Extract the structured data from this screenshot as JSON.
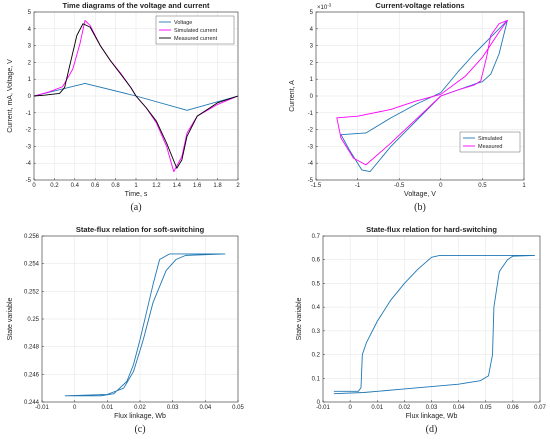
{
  "chart_data": [
    {
      "id": "a",
      "type": "line",
      "panel_label": "(a)",
      "title": "Time diagrams of the voltage and current",
      "xlabel": "Time, s",
      "ylabel": "Current, mA, Voltage, V",
      "xlim": [
        0,
        2
      ],
      "ylim": [
        -5,
        5
      ],
      "xticks": [
        0,
        0.2,
        0.4,
        0.6,
        0.8,
        1,
        1.2,
        1.4,
        1.6,
        1.8,
        2
      ],
      "yticks": [
        -5,
        -4,
        -3,
        -2,
        -1,
        0,
        1,
        2,
        3,
        4,
        5
      ],
      "grid": true,
      "legend": "top-right",
      "series": [
        {
          "name": "Voltage",
          "color": "#1f77b4",
          "points": [
            [
              0,
              0
            ],
            [
              0.5,
              0.75
            ],
            [
              1.0,
              0
            ],
            [
              1.5,
              -0.85
            ],
            [
              2.0,
              0
            ]
          ]
        },
        {
          "name": "Simulated current",
          "color": "#ff00ff",
          "points": [
            [
              0,
              0
            ],
            [
              0.15,
              0.25
            ],
            [
              0.28,
              0.55
            ],
            [
              0.38,
              1.6
            ],
            [
              0.45,
              3.1
            ],
            [
              0.5,
              4.5
            ],
            [
              0.55,
              4.2
            ],
            [
              0.65,
              3.0
            ],
            [
              0.75,
              2.1
            ],
            [
              0.85,
              1.35
            ],
            [
              0.95,
              0.5
            ],
            [
              1.0,
              0
            ],
            [
              1.1,
              -0.7
            ],
            [
              1.2,
              -1.6
            ],
            [
              1.3,
              -3.0
            ],
            [
              1.37,
              -4.5
            ],
            [
              1.45,
              -3.6
            ],
            [
              1.5,
              -2.2
            ],
            [
              1.6,
              -1.2
            ],
            [
              1.8,
              -0.5
            ],
            [
              2.0,
              0
            ]
          ]
        },
        {
          "name": "Measured current",
          "color": "#000000",
          "points": [
            [
              0,
              0
            ],
            [
              0.1,
              0.05
            ],
            [
              0.25,
              0.15
            ],
            [
              0.3,
              0.5
            ],
            [
              0.35,
              1.8
            ],
            [
              0.42,
              3.6
            ],
            [
              0.48,
              4.3
            ],
            [
              0.55,
              4.1
            ],
            [
              0.65,
              3.0
            ],
            [
              0.75,
              2.1
            ],
            [
              0.85,
              1.3
            ],
            [
              0.95,
              0.5
            ],
            [
              1.0,
              0
            ],
            [
              1.1,
              -0.7
            ],
            [
              1.2,
              -1.5
            ],
            [
              1.3,
              -2.8
            ],
            [
              1.4,
              -4.3
            ],
            [
              1.45,
              -3.8
            ],
            [
              1.5,
              -2.4
            ],
            [
              1.6,
              -1.2
            ],
            [
              1.8,
              -0.4
            ],
            [
              2.0,
              0
            ]
          ]
        }
      ]
    },
    {
      "id": "b",
      "type": "line",
      "panel_label": "(b)",
      "title": "Current-voltage relations",
      "xlabel": "Voltage, V",
      "ylabel": "Current, A",
      "y_multiplier": "×10",
      "y_multiplier_exp": "-3",
      "xlim": [
        -1.5,
        1
      ],
      "ylim": [
        -5,
        5
      ],
      "xticks": [
        -1.5,
        -1,
        -0.5,
        0,
        0.5,
        1
      ],
      "yticks": [
        -5,
        -4,
        -3,
        -2,
        -1,
        0,
        1,
        2,
        3,
        4,
        5
      ],
      "grid": true,
      "legend": "bottom-right",
      "series": [
        {
          "name": "Simulated",
          "color": "#1f77b4",
          "points": [
            [
              0,
              0
            ],
            [
              0.2,
              0.35
            ],
            [
              0.4,
              0.7
            ],
            [
              0.5,
              0.85
            ],
            [
              0.6,
              1.3
            ],
            [
              0.7,
              2.5
            ],
            [
              0.8,
              4.5
            ],
            [
              0.6,
              3.5
            ],
            [
              0.4,
              2.5
            ],
            [
              0.2,
              1.4
            ],
            [
              0,
              0.2
            ],
            [
              -0.3,
              -0.5
            ],
            [
              -0.6,
              -1.3
            ],
            [
              -0.9,
              -2.2
            ],
            [
              -1.2,
              -2.3
            ],
            [
              -1.1,
              -3.2
            ],
            [
              -0.95,
              -4.4
            ],
            [
              -0.85,
              -4.5
            ],
            [
              -0.6,
              -3.0
            ],
            [
              -0.3,
              -1.5
            ],
            [
              0,
              0
            ]
          ]
        },
        {
          "name": "Measured",
          "color": "#ff00ff",
          "points": [
            [
              0,
              0
            ],
            [
              0.2,
              0.35
            ],
            [
              0.4,
              0.65
            ],
            [
              0.48,
              0.9
            ],
            [
              0.55,
              2.3
            ],
            [
              0.6,
              3.6
            ],
            [
              0.7,
              4.3
            ],
            [
              0.8,
              4.5
            ],
            [
              0.7,
              3.8
            ],
            [
              0.5,
              2.3
            ],
            [
              0.3,
              1.2
            ],
            [
              0,
              0.1
            ],
            [
              -0.3,
              -0.3
            ],
            [
              -0.6,
              -0.8
            ],
            [
              -1.0,
              -1.2
            ],
            [
              -1.25,
              -1.3
            ],
            [
              -1.2,
              -2.5
            ],
            [
              -1.05,
              -3.7
            ],
            [
              -0.9,
              -4.1
            ],
            [
              -0.6,
              -2.8
            ],
            [
              -0.3,
              -1.4
            ],
            [
              0,
              0
            ]
          ]
        }
      ]
    },
    {
      "id": "c",
      "type": "line",
      "panel_label": "(c)",
      "title": "State-flux relation for soft-switching",
      "xlabel": "Flux linkage, Wb",
      "ylabel": "State variable",
      "xlim": [
        -0.01,
        0.05
      ],
      "ylim": [
        0.244,
        0.256
      ],
      "xticks": [
        -0.01,
        0,
        0.01,
        0.02,
        0.03,
        0.04,
        0.05
      ],
      "yticks": [
        0.244,
        0.246,
        0.248,
        0.25,
        0.252,
        0.254,
        0.256
      ],
      "grid": true,
      "series": [
        {
          "name": "",
          "color": "#1f77b4",
          "points": [
            [
              -0.003,
              0.24445
            ],
            [
              0.008,
              0.24445
            ],
            [
              0.012,
              0.2446
            ],
            [
              0.016,
              0.2455
            ],
            [
              0.018,
              0.2467
            ],
            [
              0.02,
              0.2485
            ],
            [
              0.022,
              0.2505
            ],
            [
              0.024,
              0.2525
            ],
            [
              0.026,
              0.2543
            ],
            [
              0.029,
              0.2547
            ],
            [
              0.046,
              0.2547
            ],
            [
              0.034,
              0.2546
            ],
            [
              0.031,
              0.2543
            ],
            [
              0.028,
              0.2535
            ],
            [
              0.024,
              0.2512
            ],
            [
              0.021,
              0.2485
            ],
            [
              0.018,
              0.2462
            ],
            [
              0.015,
              0.245
            ],
            [
              0.01,
              0.24455
            ],
            [
              -0.003,
              0.24445
            ]
          ]
        }
      ]
    },
    {
      "id": "d",
      "type": "line",
      "panel_label": "(d)",
      "title": "State-flux relation for hard-switching",
      "xlabel": "Flux linkage, Wb",
      "ylabel": "State variable",
      "xlim": [
        -0.01,
        0.07
      ],
      "ylim": [
        0,
        0.7
      ],
      "xticks": [
        -0.01,
        0,
        0.01,
        0.02,
        0.03,
        0.04,
        0.05,
        0.06,
        0.07
      ],
      "yticks": [
        0,
        0.1,
        0.2,
        0.3,
        0.4,
        0.5,
        0.6,
        0.7
      ],
      "grid": true,
      "series": [
        {
          "name": "",
          "color": "#1f77b4",
          "points": [
            [
              -0.006,
              0.045
            ],
            [
              0.003,
              0.045
            ],
            [
              0.004,
              0.06
            ],
            [
              0.0045,
              0.2
            ],
            [
              0.006,
              0.25
            ],
            [
              0.01,
              0.34
            ],
            [
              0.015,
              0.43
            ],
            [
              0.02,
              0.5
            ],
            [
              0.025,
              0.56
            ],
            [
              0.03,
              0.61
            ],
            [
              0.033,
              0.618
            ],
            [
              0.068,
              0.618
            ],
            [
              0.06,
              0.615
            ],
            [
              0.058,
              0.6
            ],
            [
              0.055,
              0.55
            ],
            [
              0.053,
              0.4
            ],
            [
              0.0525,
              0.2
            ],
            [
              0.051,
              0.11
            ],
            [
              0.048,
              0.09
            ],
            [
              0.04,
              0.075
            ],
            [
              0.02,
              0.055
            ],
            [
              0.005,
              0.04
            ],
            [
              -0.006,
              0.035
            ]
          ]
        }
      ]
    }
  ]
}
